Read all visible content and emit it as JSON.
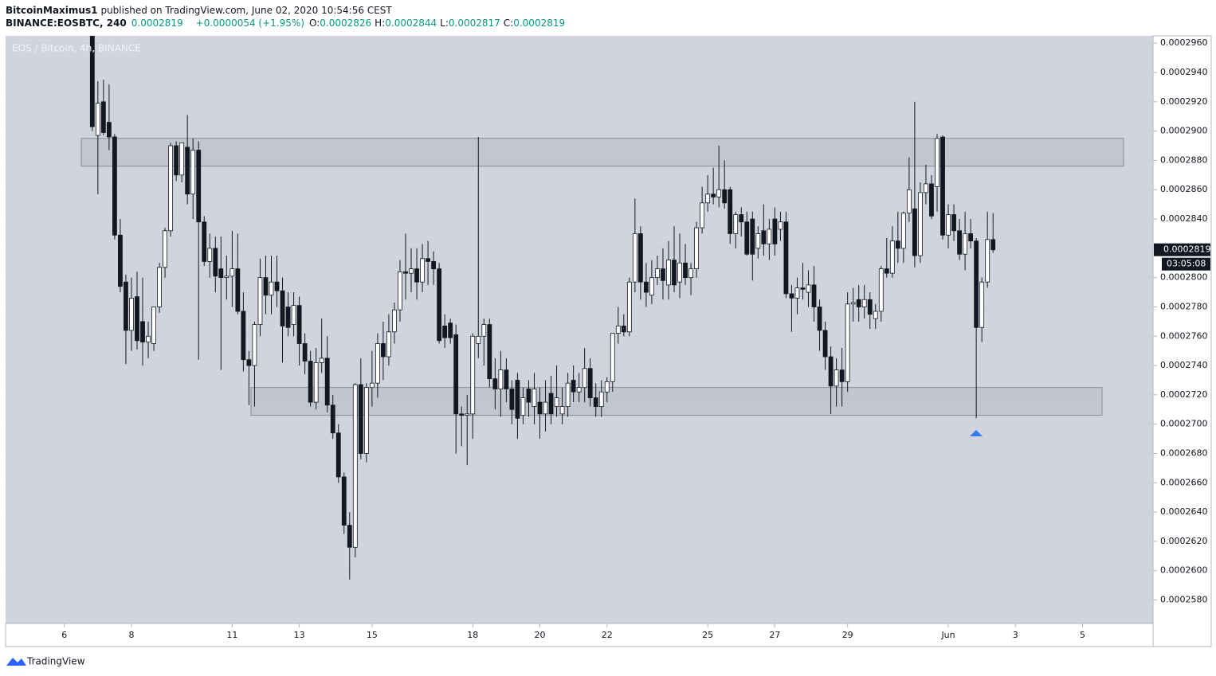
{
  "header": {
    "author": "BitcoinMaximus1",
    "published": "published on TradingView.com, June 02, 2020 10:54:56 CEST",
    "symbol": "BINANCE:EOSBTC, 240",
    "change": "+0.0000054 (+1.95%)",
    "o_label": "O:",
    "h_label": "H:",
    "l_label": "L:",
    "c_label": "C:"
  },
  "footer": {
    "brand": "TradingView"
  },
  "chart_data": {
    "type": "candlestick",
    "title": "EOS / Bitcoin, 4h, BINANCE",
    "countdown": "03:05:08",
    "up_color": "#ffffff",
    "down_color": "#131722",
    "wick_color": "#131722",
    "background": "#d1d4dc",
    "open": [
      0.0002965,
      0.0002897,
      0.000292,
      0.0002906,
      0.0002896,
      0.0002829,
      0.0002797,
      0.0002764,
      0.0002787,
      0.000277,
      0.0002756,
      0.0002755,
      0.000278,
      0.0002807,
      0.0002832,
      0.000289,
      0.000287,
      0.0002889,
      0.0002857,
      0.0002887,
      0.0002838,
      0.0002811,
      0.000282,
      0.0002806,
      0.00028,
      0.0002801,
      0.0002806,
      0.0002777,
      0.0002744,
      0.000274,
      0.0002768,
      0.00028,
      0.0002788,
      0.0002797,
      0.0002791,
      0.000278,
      0.0002768,
      0.0002781,
      0.0002755,
      0.0002743,
      0.0002715,
      0.0002742,
      0.0002745,
      0.0002713,
      0.0002694,
      0.0002664,
      0.0002631,
      0.0002616,
      0.0002727,
      0.000268,
      0.0002725,
      0.0002728,
      0.0002755,
      0.0002746,
      0.0002763,
      0.0002778,
      0.0002804,
      0.0002803,
      0.0002806,
      0.0002797,
      0.0002813,
      0.0002811,
      0.0002806,
      0.0002767,
      0.0002769,
      0.0002761,
      0.0002707,
      0.0002706,
      0.0002707,
      0.0002755,
      0.000276,
      0.0002768,
      0.0002731,
      0.0002724,
      0.0002737,
      0.0002724,
      0.000273,
      0.0002706,
      0.0002724,
      0.0002712,
      0.0002715,
      0.0002707,
      0.0002721,
      0.0002712,
      0.0002707,
      0.0002712,
      0.000273,
      0.0002722,
      0.0002725,
      0.0002738,
      0.0002718,
      0.0002712,
      0.0002722,
      0.0002729,
      0.0002762,
      0.0002767,
      0.0002763,
      0.0002797,
      0.000283,
      0.0002797,
      0.0002788,
      0.00028,
      0.0002806,
      0.0002795,
      0.0002812,
      0.0002797,
      0.000281,
      0.00028,
      0.0002806,
      0.0002834,
      0.0002851,
      0.0002857,
      0.0002855,
      0.000286,
      0.000286,
      0.000283,
      0.0002843,
      0.0002838,
      0.000284,
      0.000282,
      0.0002832,
      0.0002823,
      0.000284,
      0.0002833,
      0.0002838,
      0.0002789,
      0.0002786,
      0.0002793,
      0.000279,
      0.0002795,
      0.000278,
      0.0002764,
      0.0002746,
      0.0002726,
      0.0002737,
      0.0002729,
      0.0002782,
      0.0002785,
      0.000278,
      0.0002785,
      0.0002772,
      0.0002777,
      0.0002806,
      0.0002803,
      0.0002825,
      0.000282,
      0.0002844,
      0.0002847,
      0.0002815,
      0.0002858,
      0.0002864,
      0.0002862,
      0.0002896,
      0.0002829,
      0.0002843,
      0.0002832,
      0.0002816,
      0.000283,
      0.0002825,
      0.0002766,
      0.0002797,
      0.0002826
    ],
    "high": [
      0.0002965,
      0.0002934,
      0.0002935,
      0.0002932,
      0.0002898,
      0.000284,
      0.0002802,
      0.00028,
      0.0002804,
      0.00028,
      0.000277,
      0.000278,
      0.000281,
      0.0002834,
      0.0002892,
      0.0002893,
      0.0002892,
      0.0002911,
      0.0002895,
      0.0002893,
      0.0002842,
      0.000283,
      0.0002828,
      0.0002828,
      0.0002815,
      0.0002832,
      0.000283,
      0.000279,
      0.000275,
      0.000277,
      0.0002813,
      0.0002815,
      0.0002815,
      0.0002815,
      0.00028,
      0.000279,
      0.000279,
      0.0002787,
      0.0002762,
      0.000275,
      0.0002752,
      0.0002772,
      0.000276,
      0.000272,
      0.00027,
      0.0002667,
      0.000264,
      0.0002728,
      0.0002745,
      0.0002728,
      0.000275,
      0.0002762,
      0.000277,
      0.0002775,
      0.0002783,
      0.0002812,
      0.000283,
      0.000282,
      0.000282,
      0.0002823,
      0.0002825,
      0.0002818,
      0.000281,
      0.0002775,
      0.0002772,
      0.0002768,
      0.0002712,
      0.000272,
      0.0002762,
      0.0002896,
      0.0002772,
      0.0002772,
      0.0002745,
      0.000275,
      0.0002745,
      0.000273,
      0.0002735,
      0.0002725,
      0.000273,
      0.0002735,
      0.0002725,
      0.000273,
      0.0002733,
      0.000274,
      0.0002725,
      0.0002735,
      0.000274,
      0.0002735,
      0.0002752,
      0.0002745,
      0.0002728,
      0.000273,
      0.0002732,
      0.0002762,
      0.000278,
      0.0002775,
      0.00028,
      0.0002854,
      0.0002835,
      0.000281,
      0.0002812,
      0.0002815,
      0.000282,
      0.0002825,
      0.0002835,
      0.000283,
      0.0002823,
      0.000281,
      0.0002838,
      0.0002862,
      0.000287,
      0.0002875,
      0.000289,
      0.000288,
      0.0002862,
      0.0002845,
      0.0002848,
      0.0002845,
      0.0002845,
      0.0002835,
      0.000285,
      0.000284,
      0.0002848,
      0.0002845,
      0.0002845,
      0.0002795,
      0.00028,
      0.000281,
      0.0002805,
      0.0002808,
      0.0002785,
      0.000277,
      0.0002753,
      0.0002745,
      0.0002752,
      0.000279,
      0.0002793,
      0.0002795,
      0.0002795,
      0.000279,
      0.0002782,
      0.0002808,
      0.0002827,
      0.0002835,
      0.0002845,
      0.0002845,
      0.0002882,
      0.000292,
      0.0002865,
      0.0002877,
      0.000287,
      0.0002898,
      0.0002897,
      0.000285,
      0.000285,
      0.000284,
      0.0002845,
      0.000284,
      0.0002827,
      0.00028,
      0.0002845,
      0.0002844
    ],
    "low": [
      0.00029,
      0.0002857,
      0.0002897,
      0.0002887,
      0.0002826,
      0.000279,
      0.0002741,
      0.000275,
      0.0002751,
      0.000274,
      0.0002745,
      0.000275,
      0.0002776,
      0.00028,
      0.0002828,
      0.0002866,
      0.0002865,
      0.000285,
      0.000284,
      0.0002744,
      0.0002808,
      0.00028,
      0.000279,
      0.0002737,
      0.0002785,
      0.000278,
      0.0002775,
      0.0002736,
      0.0002713,
      0.0002712,
      0.000276,
      0.0002775,
      0.0002775,
      0.000278,
      0.0002742,
      0.000276,
      0.000276,
      0.000274,
      0.0002734,
      0.0002712,
      0.000271,
      0.0002735,
      0.0002708,
      0.000269,
      0.000266,
      0.0002625,
      0.0002594,
      0.0002609,
      0.0002676,
      0.0002674,
      0.0002712,
      0.0002718,
      0.000273,
      0.000274,
      0.0002755,
      0.000277,
      0.0002785,
      0.000279,
      0.0002785,
      0.000279,
      0.0002795,
      0.0002795,
      0.0002755,
      0.0002752,
      0.0002755,
      0.000268,
      0.0002685,
      0.0002672,
      0.000269,
      0.0002745,
      0.000274,
      0.0002725,
      0.000271,
      0.0002705,
      0.0002715,
      0.00027,
      0.000269,
      0.00027,
      0.0002705,
      0.00027,
      0.000269,
      0.0002695,
      0.00027,
      0.0002705,
      0.00027,
      0.0002705,
      0.0002715,
      0.0002715,
      0.0002715,
      0.0002712,
      0.0002705,
      0.0002705,
      0.0002715,
      0.0002722,
      0.0002755,
      0.000276,
      0.000276,
      0.000279,
      0.0002785,
      0.000278,
      0.0002782,
      0.0002795,
      0.0002785,
      0.0002785,
      0.000279,
      0.0002786,
      0.0002795,
      0.0002788,
      0.00028,
      0.000283,
      0.0002845,
      0.000285,
      0.0002848,
      0.0002847,
      0.0002823,
      0.000282,
      0.0002828,
      0.0002815,
      0.0002798,
      0.0002813,
      0.0002815,
      0.0002812,
      0.0002815,
      0.0002825,
      0.0002786,
      0.0002763,
      0.0002775,
      0.0002785,
      0.000278,
      0.000277,
      0.000275,
      0.0002737,
      0.0002707,
      0.0002712,
      0.0002712,
      0.0002722,
      0.000277,
      0.000277,
      0.0002772,
      0.0002765,
      0.0002765,
      0.000277,
      0.00028,
      0.00028,
      0.000281,
      0.000281,
      0.0002838,
      0.0002807,
      0.000281,
      0.000285,
      0.000284,
      0.0002845,
      0.0002826,
      0.000282,
      0.0002825,
      0.0002812,
      0.0002805,
      0.000282,
      0.0002704,
      0.0002756,
      0.0002793,
      0.0002817
    ],
    "close": [
      0.0002903,
      0.0002919,
      0.0002899,
      0.0002896,
      0.0002829,
      0.0002794,
      0.0002764,
      0.0002786,
      0.0002757,
      0.0002756,
      0.000276,
      0.000278,
      0.0002807,
      0.0002832,
      0.000289,
      0.000287,
      0.0002892,
      0.0002857,
      0.0002887,
      0.0002838,
      0.0002811,
      0.000282,
      0.0002801,
      0.00028,
      0.0002801,
      0.0002806,
      0.0002777,
      0.0002744,
      0.000274,
      0.0002768,
      0.00028,
      0.0002788,
      0.0002797,
      0.0002791,
      0.0002767,
      0.0002766,
      0.0002781,
      0.0002755,
      0.0002743,
      0.0002715,
      0.0002742,
      0.0002745,
      0.0002713,
      0.0002694,
      0.0002664,
      0.0002631,
      0.0002616,
      0.0002727,
      0.000268,
      0.0002725,
      0.0002728,
      0.0002755,
      0.0002746,
      0.0002763,
      0.0002778,
      0.0002804,
      0.0002803,
      0.0002806,
      0.0002797,
      0.0002813,
      0.0002811,
      0.0002806,
      0.0002757,
      0.0002759,
      0.0002759,
      0.0002707,
      0.0002706,
      0.0002707,
      0.000276,
      0.000276,
      0.0002768,
      0.0002731,
      0.0002724,
      0.0002737,
      0.0002724,
      0.000271,
      0.0002704,
      0.0002718,
      0.0002715,
      0.0002724,
      0.0002707,
      0.0002715,
      0.0002707,
      0.0002718,
      0.0002712,
      0.0002728,
      0.0002722,
      0.0002725,
      0.0002738,
      0.0002718,
      0.0002712,
      0.0002722,
      0.0002729,
      0.0002762,
      0.0002767,
      0.0002763,
      0.0002797,
      0.000283,
      0.0002797,
      0.000279,
      0.00028,
      0.0002806,
      0.0002798,
      0.0002812,
      0.0002795,
      0.000281,
      0.00028,
      0.0002806,
      0.0002834,
      0.0002851,
      0.0002857,
      0.0002855,
      0.000286,
      0.0002851,
      0.000283,
      0.0002843,
      0.0002838,
      0.0002816,
      0.0002816,
      0.000283,
      0.0002823,
      0.0002833,
      0.0002823,
      0.0002838,
      0.0002789,
      0.0002786,
      0.0002793,
      0.0002792,
      0.0002795,
      0.000278,
      0.0002764,
      0.0002746,
      0.0002726,
      0.0002737,
      0.0002729,
      0.0002782,
      0.0002783,
      0.000278,
      0.0002785,
      0.0002775,
      0.0002777,
      0.0002806,
      0.0002803,
      0.0002825,
      0.000282,
      0.0002844,
      0.000286,
      0.0002815,
      0.0002858,
      0.0002864,
      0.0002842,
      0.0002895,
      0.0002829,
      0.0002843,
      0.0002832,
      0.0002816,
      0.000283,
      0.0002825,
      0.0002766,
      0.0002797,
      0.0002826,
      0.0002819
    ],
    "zones": [
      {
        "low": 0.0002876,
        "high": 0.0002895
      },
      {
        "low": 0.0002706,
        "high": 0.0002725
      }
    ],
    "ylim": [
      0.0002564,
      0.0002965
    ],
    "yticks": [
      {
        "value": 0.000258,
        "label": "0.0002580"
      },
      {
        "value": 0.00026,
        "label": "0.0002600"
      },
      {
        "value": 0.000262,
        "label": "0.0002620"
      },
      {
        "value": 0.000264,
        "label": "0.0002640"
      },
      {
        "value": 0.000266,
        "label": "0.0002660"
      },
      {
        "value": 0.000268,
        "label": "0.0002680"
      },
      {
        "value": 0.00027,
        "label": "0.0002700"
      },
      {
        "value": 0.000272,
        "label": "0.0002720"
      },
      {
        "value": 0.000274,
        "label": "0.0002740"
      },
      {
        "value": 0.000276,
        "label": "0.0002760"
      },
      {
        "value": 0.000278,
        "label": "0.0002780"
      },
      {
        "value": 0.00028,
        "label": "0.0002800"
      },
      {
        "value": 0.000282,
        "label": "0.0002820"
      },
      {
        "value": 0.000284,
        "label": "0.0002840"
      },
      {
        "value": 0.000286,
        "label": "0.0002860"
      },
      {
        "value": 0.000288,
        "label": "0.0002880"
      },
      {
        "value": 0.00029,
        "label": "0.0002900"
      },
      {
        "value": 0.000292,
        "label": "0.0002920"
      },
      {
        "value": 0.000294,
        "label": "0.0002940"
      },
      {
        "value": 0.000296,
        "label": "0.0002960"
      }
    ],
    "xlim": [
      -15.5,
      189.6
    ],
    "xticks": [
      {
        "value": -5,
        "label": "6"
      },
      {
        "value": 7,
        "label": "8"
      },
      {
        "value": 25,
        "label": "11"
      },
      {
        "value": 37,
        "label": "13"
      },
      {
        "value": 50,
        "label": "15"
      },
      {
        "value": 68,
        "label": "18"
      },
      {
        "value": 80,
        "label": "20"
      },
      {
        "value": 92,
        "label": "22"
      },
      {
        "value": 110,
        "label": "25"
      },
      {
        "value": 122,
        "label": "27"
      },
      {
        "value": 135,
        "label": "29"
      },
      {
        "value": 153,
        "label": "Jun"
      },
      {
        "value": 165,
        "label": "3"
      },
      {
        "value": 177,
        "label": "5"
      }
    ]
  }
}
